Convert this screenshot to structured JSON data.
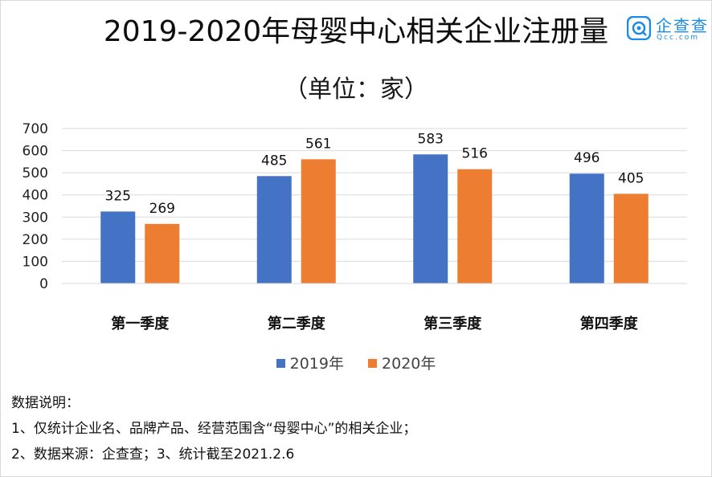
{
  "header": {
    "title": "2019-2020年母婴中心相关企业注册量",
    "subtitle": "（单位：家）"
  },
  "logo": {
    "name": "企查查",
    "sub": "Qcc.com",
    "color": "#1a8be8"
  },
  "chart_data": {
    "type": "bar",
    "title": "2019-2020年母婴中心相关企业注册量",
    "subtitle": "（单位：家）",
    "categories": [
      "第一季度",
      "第二季度",
      "第三季度",
      "第四季度"
    ],
    "series": [
      {
        "name": "2019年",
        "values": [
          325,
          485,
          583,
          496
        ],
        "color": "#4472c4"
      },
      {
        "name": "2020年",
        "values": [
          269,
          561,
          516,
          405
        ],
        "color": "#ed7d31"
      }
    ],
    "ylim": [
      0,
      700
    ],
    "yticks": [
      0,
      100,
      200,
      300,
      400,
      500,
      600,
      700
    ],
    "grid": true,
    "legend": "bottom-center",
    "xlabel": "",
    "ylabel": ""
  },
  "notes": {
    "heading": "数据说明：",
    "lines": [
      "1、仅统计企业名、品牌产品、经营范围含“母婴中心”的相关企业；",
      "2、数据来源：企查查；3、统计截至2021.2.6"
    ]
  }
}
